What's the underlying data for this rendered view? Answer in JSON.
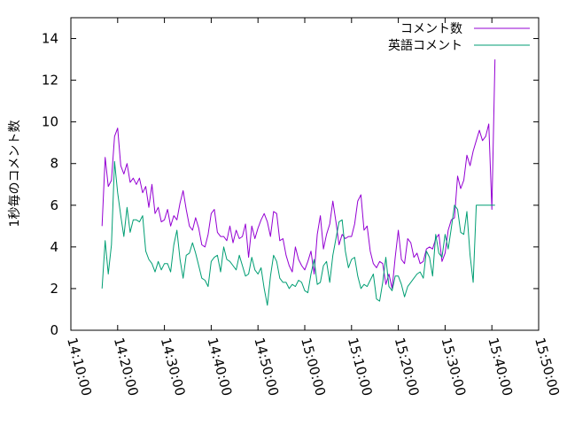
{
  "chart_data": {
    "type": "line",
    "title": "",
    "xlabel": "",
    "ylabel": "1秒毎のコメント数",
    "xlim": [
      "14:10:00",
      "15:50:00"
    ],
    "ylim": [
      0,
      15
    ],
    "xticks": [
      "14:10:00",
      "14:20:00",
      "14:30:00",
      "14:40:00",
      "14:50:00",
      "15:00:00",
      "15:10:00",
      "15:20:00",
      "15:30:00",
      "15:40:00",
      "15:50:00"
    ],
    "yticks": [
      0,
      2,
      4,
      6,
      8,
      10,
      12,
      14
    ],
    "grid": false,
    "legend": "top-right",
    "colors": {
      "series1": "#9400d3",
      "series2": "#009e73"
    },
    "x": [
      "14:16:40",
      "14:17:20",
      "14:18:00",
      "14:18:40",
      "14:19:20",
      "14:20:00",
      "14:20:40",
      "14:21:20",
      "14:22:00",
      "14:22:40",
      "14:23:20",
      "14:24:00",
      "14:24:40",
      "14:25:20",
      "14:26:00",
      "14:26:40",
      "14:27:20",
      "14:28:00",
      "14:28:40",
      "14:29:20",
      "14:30:00",
      "14:30:40",
      "14:31:20",
      "14:32:00",
      "14:32:40",
      "14:33:20",
      "14:34:00",
      "14:34:40",
      "14:35:20",
      "14:36:00",
      "14:36:40",
      "14:37:20",
      "14:38:00",
      "14:38:40",
      "14:39:20",
      "14:40:00",
      "14:40:40",
      "14:41:20",
      "14:42:00",
      "14:42:40",
      "14:43:20",
      "14:44:00",
      "14:44:40",
      "14:45:20",
      "14:46:00",
      "14:46:40",
      "14:47:20",
      "14:48:00",
      "14:48:40",
      "14:49:20",
      "14:50:00",
      "14:50:40",
      "14:51:20",
      "14:52:00",
      "14:52:40",
      "14:53:20",
      "14:54:00",
      "14:54:40",
      "14:55:20",
      "14:56:00",
      "14:56:40",
      "14:57:20",
      "14:58:00",
      "14:58:40",
      "14:59:20",
      "15:00:00",
      "15:00:40",
      "15:01:20",
      "15:02:00",
      "15:02:40",
      "15:03:20",
      "15:04:00",
      "15:04:40",
      "15:05:20",
      "15:06:00",
      "15:06:40",
      "15:07:20",
      "15:08:00",
      "15:08:40",
      "15:09:20",
      "15:10:00",
      "15:10:40",
      "15:11:20",
      "15:12:00",
      "15:12:40",
      "15:13:20",
      "15:14:00",
      "15:14:40",
      "15:15:20",
      "15:16:00",
      "15:16:40",
      "15:17:20",
      "15:18:00",
      "15:18:40",
      "15:19:20",
      "15:20:00",
      "15:20:40",
      "15:21:20",
      "15:22:00",
      "15:22:40",
      "15:23:20",
      "15:24:00",
      "15:24:40",
      "15:25:20",
      "15:26:00",
      "15:26:40",
      "15:27:20",
      "15:28:00",
      "15:28:40",
      "15:29:20",
      "15:30:00",
      "15:30:40",
      "15:31:20",
      "15:32:00",
      "15:32:40",
      "15:33:20",
      "15:34:00",
      "15:34:40",
      "15:35:20",
      "15:36:00",
      "15:36:40",
      "15:37:20",
      "15:38:00",
      "15:38:40",
      "15:39:20",
      "15:40:00",
      "15:40:40"
    ],
    "series": [
      {
        "name": "コメント数",
        "values": [
          5.0,
          8.3,
          6.9,
          7.2,
          9.3,
          9.7,
          7.9,
          7.5,
          8.0,
          7.1,
          7.3,
          7.0,
          7.3,
          6.6,
          6.9,
          5.9,
          7.0,
          5.6,
          5.9,
          5.2,
          5.3,
          5.8,
          5.0,
          5.5,
          5.3,
          6.1,
          6.7,
          5.8,
          5.0,
          4.8,
          5.4,
          4.9,
          4.1,
          4.0,
          4.6,
          5.6,
          5.8,
          4.7,
          4.5,
          4.5,
          4.3,
          5.0,
          4.2,
          4.8,
          4.4,
          4.5,
          5.1,
          3.5,
          5.0,
          4.4,
          4.9,
          5.3,
          5.6,
          5.2,
          4.5,
          5.7,
          5.6,
          4.3,
          4.4,
          3.6,
          3.1,
          2.8,
          4.0,
          3.4,
          3.1,
          2.9,
          3.3,
          3.8,
          2.7,
          4.6,
          5.5,
          3.9,
          4.6,
          5.1,
          6.2,
          5.2,
          4.1,
          4.6,
          4.4,
          4.5,
          4.5,
          5.1,
          6.2,
          6.5,
          4.8,
          5.0,
          3.8,
          3.2,
          3.0,
          3.3,
          3.2,
          2.2,
          2.7,
          2.0,
          3.5,
          4.8,
          3.4,
          3.2,
          4.4,
          4.2,
          3.5,
          3.7,
          3.2,
          3.3,
          3.9,
          4.0,
          3.9,
          4.4,
          4.6,
          3.3,
          3.7,
          4.8,
          5.3,
          5.4,
          7.4,
          6.8,
          7.2,
          8.4,
          7.9,
          8.6,
          9.1,
          9.6,
          9.1,
          9.3,
          9.9,
          5.8,
          13.0
        ]
      },
      {
        "name": "英語コメント",
        "values": [
          2.0,
          4.3,
          2.7,
          4.1,
          8.1,
          6.6,
          5.5,
          4.5,
          5.9,
          4.7,
          5.3,
          5.3,
          5.2,
          5.5,
          3.8,
          3.4,
          3.2,
          2.8,
          3.3,
          2.9,
          3.2,
          3.2,
          2.8,
          4.1,
          4.8,
          3.4,
          2.5,
          3.6,
          3.7,
          4.2,
          3.7,
          3.1,
          2.5,
          2.4,
          2.1,
          3.3,
          3.5,
          3.6,
          2.8,
          4.0,
          3.4,
          3.3,
          3.1,
          2.9,
          3.6,
          3.1,
          2.6,
          2.7,
          3.5,
          2.9,
          2.7,
          3.0,
          2.0,
          1.2,
          2.6,
          3.6,
          3.3,
          2.5,
          2.3,
          2.3,
          2.0,
          2.2,
          2.1,
          2.4,
          2.3,
          1.9,
          1.8,
          2.7,
          3.4,
          2.2,
          2.3,
          3.1,
          3.3,
          2.3,
          3.6,
          4.4,
          5.2,
          5.3,
          3.8,
          3.0,
          3.4,
          3.5,
          2.6,
          2.0,
          2.2,
          2.1,
          2.4,
          2.7,
          1.5,
          1.4,
          2.3,
          3.5,
          2.1,
          1.9,
          2.6,
          2.6,
          2.2,
          1.6,
          2.1,
          2.3,
          2.5,
          2.7,
          2.8,
          2.5,
          3.8,
          3.5,
          2.6,
          4.6,
          3.7,
          3.5,
          4.6,
          3.9,
          4.9,
          6.0,
          5.8,
          4.7,
          4.6,
          5.7,
          3.6,
          2.3,
          6.0,
          6.0,
          6.0,
          6.0,
          6.0,
          6.0,
          6.0
        ]
      }
    ]
  }
}
